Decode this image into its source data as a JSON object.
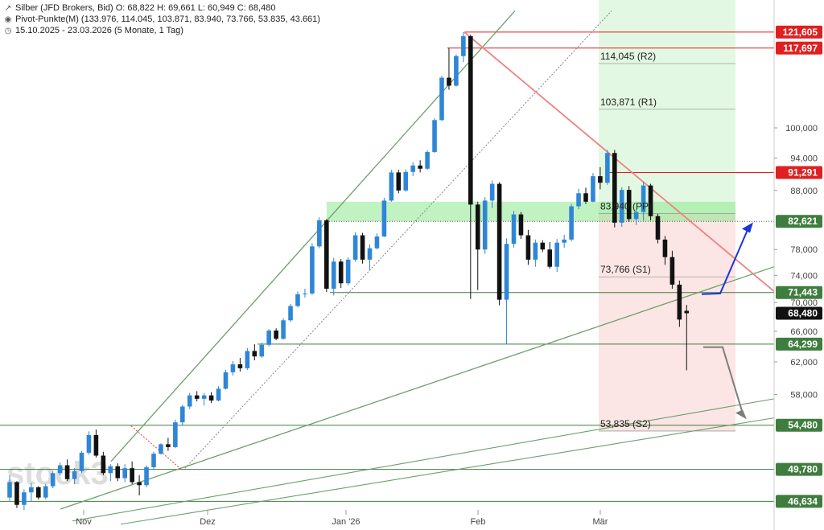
{
  "header": {
    "title_line": "Silber (JFD Brokers, Bid)  O: 68,822  H: 69,661  L: 60,949  C: 68,480",
    "pivot_line": "Pivot-Punkte(M) (133.976,  114.045,  103.871,  83.940,  73.766,  53.835,  43.661)",
    "range_line": "15.10.2025 - 23.03.2026  (5 Monate, 1 Tag)",
    "icons": [
      "trend-arrow-icon",
      "eye-icon",
      "clock-icon"
    ]
  },
  "watermark": "stock3",
  "colors": {
    "up": "#2f86d6",
    "down": "#111111",
    "support": "#3f7d3f",
    "resistance": "#e02020",
    "green_zone": "#d8f5d8",
    "red_zone": "#fbe1e1",
    "arrow_up": "#1a35d8",
    "arrow_down": "#7d7d7d"
  },
  "chart_data": {
    "type": "candlestick",
    "ylim": [
      45.5,
      127
    ],
    "axis_ticks": [
      "58,000",
      "62,000",
      "66,000",
      "70,000",
      "74,000",
      "78,000",
      "88,000",
      "94,000",
      "100,000"
    ],
    "x_labels": [
      "Nov",
      "Dez",
      "Jan '26",
      "Feb",
      "Mär"
    ],
    "price_tags": [
      {
        "label": "121,605",
        "value": 121.605,
        "kind": "resistance"
      },
      {
        "label": "117,697",
        "value": 117.697,
        "kind": "resistance"
      },
      {
        "label": "91,291",
        "value": 91.291,
        "kind": "resistance"
      },
      {
        "label": "82,621",
        "value": 82.621,
        "kind": "support"
      },
      {
        "label": "71,443",
        "value": 71.443,
        "kind": "support"
      },
      {
        "label": "68,480",
        "value": 68.48,
        "kind": "last"
      },
      {
        "label": "64,299",
        "value": 64.299,
        "kind": "support"
      },
      {
        "label": "54,480",
        "value": 54.48,
        "kind": "support"
      },
      {
        "label": "49,780",
        "value": 49.78,
        "kind": "support"
      },
      {
        "label": "46,634",
        "value": 46.634,
        "kind": "support"
      }
    ],
    "pivots": [
      {
        "label": "114,045 (R2)",
        "value": 114.045
      },
      {
        "label": "103,871 (R1)",
        "value": 103.871
      },
      {
        "label": "83,940 (PP)",
        "value": 83.94
      },
      {
        "label": "73,766 (S1)",
        "value": 73.766
      },
      {
        "label": "53,835 (S2)",
        "value": 53.835
      }
    ],
    "candles": [
      [
        47.0,
        49.2,
        46.7,
        48.5
      ],
      [
        48.5,
        48.6,
        46.0,
        46.3
      ],
      [
        46.3,
        47.8,
        45.8,
        47.5
      ],
      [
        47.5,
        48.4,
        46.6,
        48.0
      ],
      [
        48.0,
        48.1,
        46.8,
        47.0
      ],
      [
        47.0,
        48.3,
        46.8,
        48.1
      ],
      [
        48.1,
        49.6,
        47.9,
        49.4
      ],
      [
        49.4,
        50.5,
        49.2,
        50.2
      ],
      [
        50.2,
        50.8,
        48.6,
        48.8
      ],
      [
        48.8,
        49.9,
        48.3,
        49.6
      ],
      [
        49.6,
        51.7,
        49.4,
        51.5
      ],
      [
        51.5,
        53.8,
        51.3,
        53.4
      ],
      [
        53.4,
        54.0,
        51.0,
        51.2
      ],
      [
        51.2,
        51.6,
        49.2,
        49.4
      ],
      [
        49.4,
        50.3,
        48.6,
        50.1
      ],
      [
        50.1,
        50.4,
        48.6,
        48.9
      ],
      [
        48.9,
        50.3,
        48.5,
        49.9
      ],
      [
        49.9,
        50.6,
        48.3,
        48.5
      ],
      [
        48.5,
        49.2,
        47.2,
        48.2
      ],
      [
        48.2,
        50.2,
        48.0,
        50.0
      ],
      [
        50.0,
        51.6,
        49.8,
        51.4
      ],
      [
        51.4,
        52.5,
        51.3,
        52.4
      ],
      [
        52.4,
        53.1,
        51.7,
        52.1
      ],
      [
        52.1,
        55.1,
        52.0,
        54.8
      ],
      [
        54.8,
        56.8,
        54.5,
        56.6
      ],
      [
        56.6,
        58.2,
        56.3,
        57.9
      ],
      [
        57.9,
        58.4,
        57.2,
        57.5
      ],
      [
        57.5,
        58.2,
        56.7,
        57.9
      ],
      [
        57.9,
        58.3,
        57.0,
        57.3
      ],
      [
        57.3,
        59.0,
        57.2,
        58.7
      ],
      [
        58.7,
        61.0,
        58.6,
        60.7
      ],
      [
        60.7,
        62.1,
        60.3,
        61.7
      ],
      [
        61.7,
        62.5,
        60.8,
        61.2
      ],
      [
        61.2,
        63.8,
        61.0,
        63.4
      ],
      [
        63.4,
        64.3,
        62.2,
        62.7
      ],
      [
        62.7,
        64.5,
        62.5,
        64.2
      ],
      [
        64.2,
        66.3,
        64.0,
        66.1
      ],
      [
        66.1,
        66.4,
        64.8,
        65.0
      ],
      [
        65.0,
        67.8,
        64.9,
        67.5
      ],
      [
        67.5,
        69.8,
        67.3,
        69.5
      ],
      [
        69.5,
        71.6,
        69.3,
        71.2
      ],
      [
        71.2,
        72.0,
        70.7,
        71.3
      ],
      [
        71.3,
        79.0,
        71.1,
        78.5
      ],
      [
        78.5,
        83.3,
        78.2,
        82.8
      ],
      [
        82.8,
        83.0,
        71.5,
        72.0
      ],
      [
        72.0,
        76.7,
        71.0,
        76.1
      ],
      [
        76.1,
        76.5,
        72.1,
        72.8
      ],
      [
        72.8,
        76.8,
        72.5,
        76.4
      ],
      [
        76.4,
        80.8,
        76.1,
        80.3
      ],
      [
        80.3,
        80.7,
        75.8,
        76.4
      ],
      [
        76.4,
        78.8,
        74.7,
        78.2
      ],
      [
        78.2,
        80.6,
        78.0,
        80.1
      ],
      [
        80.1,
        86.7,
        80.0,
        86.2
      ],
      [
        86.2,
        91.8,
        86.0,
        91.3
      ],
      [
        91.3,
        91.8,
        87.5,
        88.0
      ],
      [
        88.0,
        91.9,
        87.8,
        91.4
      ],
      [
        91.4,
        93.2,
        90.6,
        92.6
      ],
      [
        92.6,
        93.6,
        91.3,
        92.0
      ],
      [
        92.0,
        95.5,
        91.8,
        95.2
      ],
      [
        95.2,
        102.0,
        95.0,
        101.6
      ],
      [
        101.6,
        111.2,
        101.4,
        110.8
      ],
      [
        110.8,
        117.7,
        108.1,
        109.0
      ],
      [
        109.0,
        116.2,
        108.8,
        115.8
      ],
      [
        115.8,
        121.6,
        114.4,
        120.6
      ],
      [
        120.6,
        121.0,
        70.5,
        85.5
      ],
      [
        85.5,
        86.0,
        71.8,
        78.0
      ],
      [
        78.0,
        86.8,
        77.3,
        86.2
      ],
      [
        86.2,
        89.8,
        84.9,
        89.2
      ],
      [
        89.2,
        89.5,
        69.6,
        70.4
      ],
      [
        70.4,
        79.8,
        64.3,
        78.9
      ],
      [
        78.9,
        84.4,
        78.3,
        83.8
      ],
      [
        83.8,
        84.2,
        79.7,
        80.3
      ],
      [
        80.3,
        81.2,
        75.6,
        76.4
      ],
      [
        76.4,
        79.6,
        75.3,
        79.1
      ],
      [
        79.1,
        79.5,
        77.6,
        78.0
      ],
      [
        78.0,
        79.2,
        75.0,
        75.3
      ],
      [
        75.3,
        79.7,
        74.5,
        79.1
      ],
      [
        79.1,
        80.4,
        78.3,
        79.6
      ],
      [
        79.6,
        85.6,
        79.3,
        85.2
      ],
      [
        85.2,
        88.3,
        84.7,
        87.5
      ],
      [
        87.5,
        88.5,
        85.6,
        86.0
      ],
      [
        86.0,
        91.2,
        85.9,
        90.6
      ],
      [
        90.6,
        92.3,
        88.2,
        89.4
      ],
      [
        89.4,
        95.6,
        89.0,
        95.0
      ],
      [
        95.0,
        95.6,
        81.6,
        82.4
      ],
      [
        82.4,
        88.6,
        81.7,
        88.1
      ],
      [
        88.1,
        88.8,
        82.5,
        83.0
      ],
      [
        83.0,
        84.7,
        82.0,
        84.2
      ],
      [
        84.2,
        89.6,
        82.8,
        88.9
      ],
      [
        88.9,
        89.2,
        82.8,
        83.5
      ],
      [
        83.5,
        83.9,
        79.0,
        79.6
      ],
      [
        79.6,
        80.2,
        75.6,
        76.8
      ],
      [
        76.8,
        77.8,
        72.0,
        72.6
      ],
      [
        72.6,
        73.2,
        66.6,
        67.6
      ],
      [
        68.822,
        69.661,
        60.949,
        68.48
      ]
    ]
  }
}
